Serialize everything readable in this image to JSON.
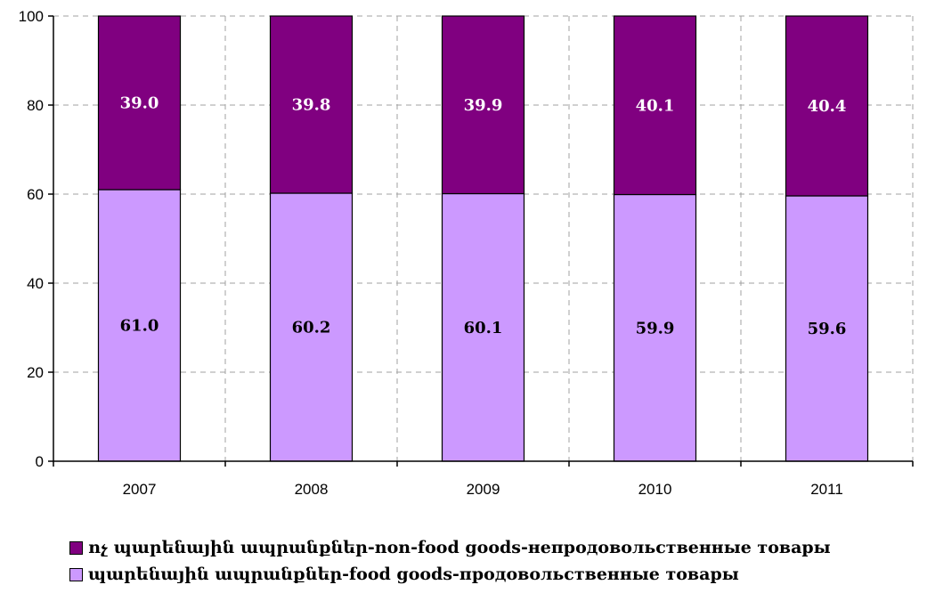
{
  "chart_data": {
    "type": "bar",
    "stacked": true,
    "categories": [
      "2007",
      "2008",
      "2009",
      "2010",
      "2011"
    ],
    "series": [
      {
        "name": "պարենային ապրանքներ-food goods-продовольственные товары",
        "values": [
          61.0,
          60.2,
          60.1,
          59.9,
          59.6
        ],
        "labels": [
          "61.0",
          "60.2",
          "60.1",
          "59.9",
          "59.6"
        ],
        "color": "#CC99FF"
      },
      {
        "name": "ոչ պարենային ապրանքներ-non-food goods-непродовольственные товары",
        "values": [
          39.0,
          39.8,
          39.9,
          40.1,
          40.4
        ],
        "labels": [
          "39.0",
          "39.8",
          "39.9",
          "40.1",
          "40.4"
        ],
        "color": "#800080"
      }
    ],
    "yticks": [
      "0",
      "20",
      "40",
      "60",
      "80",
      "100"
    ],
    "ylim": [
      0,
      100
    ],
    "grid": true,
    "legend_position": "bottom-left"
  },
  "legend": {
    "nonfood": "ոչ պարենային ապրանքներ-non-food goods-непродовольственные товары",
    "food": "պարենային ապրանքներ-food goods-продовольственные товары"
  }
}
